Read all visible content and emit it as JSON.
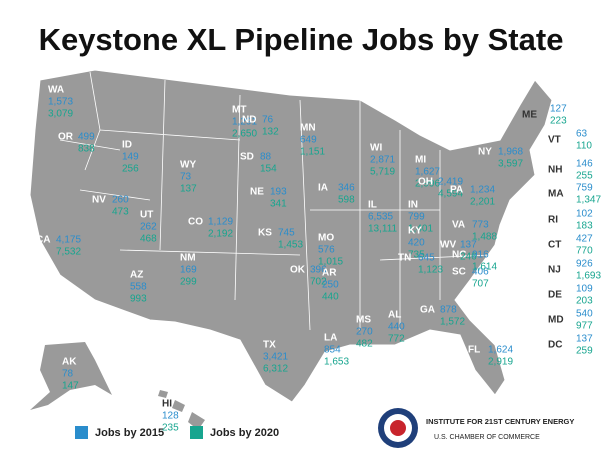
{
  "title": "Keystone XL Pipeline Jobs by State",
  "legend": [
    {
      "label": "Jobs by 2015",
      "color": "#2a8dcc"
    },
    {
      "label": "Jobs by 2020",
      "color": "#17a58f"
    }
  ],
  "footer": {
    "line1": "INSTITUTE FOR 21ST CENTURY ENERGY",
    "line2": "U.S. CHAMBER OF COMMERCE"
  },
  "states": [
    {
      "abbr": "WA",
      "jobs_2015": "1,573",
      "jobs_2020": "3,079"
    },
    {
      "abbr": "OR",
      "jobs_2015": "499",
      "jobs_2020": "838"
    },
    {
      "abbr": "CA",
      "jobs_2015": "4,175",
      "jobs_2020": "7,532"
    },
    {
      "abbr": "NV",
      "jobs_2015": "260",
      "jobs_2020": "473"
    },
    {
      "abbr": "ID",
      "jobs_2015": "149",
      "jobs_2020": "256"
    },
    {
      "abbr": "MT",
      "jobs_2015": "1,291",
      "jobs_2020": "2,650"
    },
    {
      "abbr": "WY",
      "jobs_2015": "73",
      "jobs_2020": "137"
    },
    {
      "abbr": "UT",
      "jobs_2015": "262",
      "jobs_2020": "468"
    },
    {
      "abbr": "CO",
      "jobs_2015": "1,129",
      "jobs_2020": "2,192"
    },
    {
      "abbr": "AZ",
      "jobs_2015": "558",
      "jobs_2020": "993"
    },
    {
      "abbr": "NM",
      "jobs_2015": "169",
      "jobs_2020": "299"
    },
    {
      "abbr": "ND",
      "jobs_2015": "76",
      "jobs_2020": "132"
    },
    {
      "abbr": "SD",
      "jobs_2015": "88",
      "jobs_2020": "154"
    },
    {
      "abbr": "NE",
      "jobs_2015": "193",
      "jobs_2020": "341"
    },
    {
      "abbr": "KS",
      "jobs_2015": "745",
      "jobs_2020": "1,453"
    },
    {
      "abbr": "OK",
      "jobs_2015": "396",
      "jobs_2020": "702"
    },
    {
      "abbr": "TX",
      "jobs_2015": "3,421",
      "jobs_2020": "6,312"
    },
    {
      "abbr": "MN",
      "jobs_2015": "649",
      "jobs_2020": "1,151"
    },
    {
      "abbr": "IA",
      "jobs_2015": "346",
      "jobs_2020": "598"
    },
    {
      "abbr": "MO",
      "jobs_2015": "576",
      "jobs_2020": "1,015"
    },
    {
      "abbr": "AR",
      "jobs_2015": "250",
      "jobs_2020": "440"
    },
    {
      "abbr": "LA",
      "jobs_2015": "854",
      "jobs_2020": "1,653"
    },
    {
      "abbr": "WI",
      "jobs_2015": "2,871",
      "jobs_2020": "5,719"
    },
    {
      "abbr": "IL",
      "jobs_2015": "6,535",
      "jobs_2020": "13,111"
    },
    {
      "abbr": "MI",
      "jobs_2015": "1,627",
      "jobs_2020": "2,996"
    },
    {
      "abbr": "IN",
      "jobs_2015": "799",
      "jobs_2020": "1,401"
    },
    {
      "abbr": "OH",
      "jobs_2015": "2,419",
      "jobs_2020": "4,594"
    },
    {
      "abbr": "KY",
      "jobs_2015": "420",
      "jobs_2020": "735"
    },
    {
      "abbr": "TN",
      "jobs_2015": "645",
      "jobs_2020": "1,123"
    },
    {
      "abbr": "MS",
      "jobs_2015": "270",
      "jobs_2020": "482"
    },
    {
      "abbr": "AL",
      "jobs_2015": "440",
      "jobs_2020": "772"
    },
    {
      "abbr": "GA",
      "jobs_2015": "878",
      "jobs_2020": "1,572"
    },
    {
      "abbr": "FL",
      "jobs_2015": "1,624",
      "jobs_2020": "2,919"
    },
    {
      "abbr": "SC",
      "jobs_2015": "406",
      "jobs_2020": "707"
    },
    {
      "abbr": "NC",
      "jobs_2015": "916",
      "jobs_2020": "1,614"
    },
    {
      "abbr": "VA",
      "jobs_2015": "773",
      "jobs_2020": "1,488"
    },
    {
      "abbr": "WV",
      "jobs_2015": "137",
      "jobs_2020": "246"
    },
    {
      "abbr": "PA",
      "jobs_2015": "1,234",
      "jobs_2020": "2,201"
    },
    {
      "abbr": "NY",
      "jobs_2015": "1,968",
      "jobs_2020": "3,597"
    },
    {
      "abbr": "ME",
      "jobs_2015": "127",
      "jobs_2020": "223"
    },
    {
      "abbr": "VT",
      "jobs_2015": "63",
      "jobs_2020": "110"
    },
    {
      "abbr": "NH",
      "jobs_2015": "146",
      "jobs_2020": "255"
    },
    {
      "abbr": "MA",
      "jobs_2015": "759",
      "jobs_2020": "1,347"
    },
    {
      "abbr": "RI",
      "jobs_2015": "102",
      "jobs_2020": "183"
    },
    {
      "abbr": "CT",
      "jobs_2015": "427",
      "jobs_2020": "770"
    },
    {
      "abbr": "NJ",
      "jobs_2015": "926",
      "jobs_2020": "1,693"
    },
    {
      "abbr": "DE",
      "jobs_2015": "109",
      "jobs_2020": "203"
    },
    {
      "abbr": "MD",
      "jobs_2015": "540",
      "jobs_2020": "977"
    },
    {
      "abbr": "DC",
      "jobs_2015": "137",
      "jobs_2020": "259"
    },
    {
      "abbr": "AK",
      "jobs_2015": "78",
      "jobs_2020": "147"
    },
    {
      "abbr": "HI",
      "jobs_2015": "128",
      "jobs_2020": "235"
    }
  ]
}
